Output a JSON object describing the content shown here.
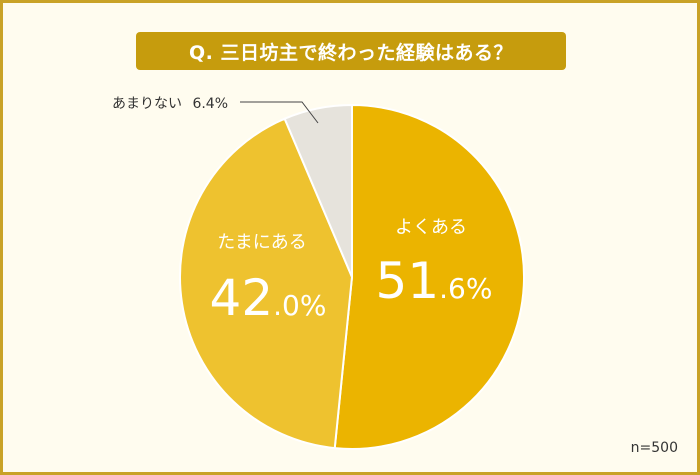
{
  "title": "Q. 三日坊主で終わった経験はある？",
  "footer": {
    "n_label": "n=500"
  },
  "colors": {
    "frame": "#c9a227",
    "background": "#fffcef",
    "banner": "#c69c0d",
    "slice_often": "#ebb400",
    "slice_sometimes": "#eec22f",
    "slice_rarely": "#e6e3dc",
    "label_text": "#ffffff"
  },
  "chart_data": {
    "type": "pie",
    "title": "Q. 三日坊主で終わった経験はある？",
    "slices": [
      {
        "label": "よくある",
        "value": 51.6,
        "value_main": "51",
        "value_sub": ".6%"
      },
      {
        "label": "たまにある",
        "value": 42.0,
        "value_main": "42",
        "value_sub": ".0%"
      },
      {
        "label": "あまりない",
        "value": 6.4,
        "value_text": "6.4%"
      }
    ],
    "start_angle_deg": 0,
    "direction": "clockwise",
    "legend": "none",
    "annotations": {
      "sample_size": "n=500"
    }
  }
}
